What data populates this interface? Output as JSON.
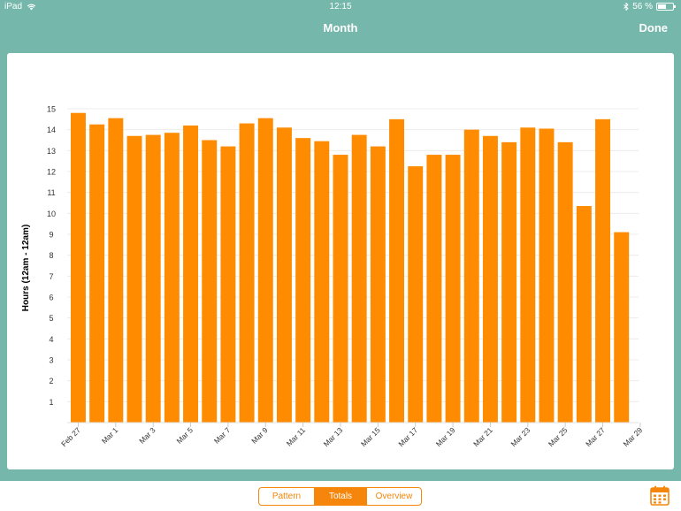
{
  "status_bar": {
    "device": "iPad",
    "time": "12:15",
    "battery_text": "56 %",
    "battery_level": 0.56
  },
  "nav": {
    "title": "Month",
    "done_label": "Done"
  },
  "chart_data": {
    "type": "bar",
    "title": "",
    "xlabel": "",
    "ylabel": "Hours (12am - 12am)",
    "ylim": [
      0,
      15
    ],
    "yticks": [
      1,
      2,
      3,
      4,
      5,
      6,
      7,
      8,
      9,
      10,
      11,
      12,
      13,
      14,
      15
    ],
    "categories": [
      "Feb 27",
      "Feb 28",
      "Mar 1",
      "Mar 2",
      "Mar 3",
      "Mar 4",
      "Mar 5",
      "Mar 6",
      "Mar 7",
      "Mar 8",
      "Mar 9",
      "Mar 10",
      "Mar 11",
      "Mar 12",
      "Mar 13",
      "Mar 14",
      "Mar 15",
      "Mar 16",
      "Mar 17",
      "Mar 18",
      "Mar 19",
      "Mar 20",
      "Mar 21",
      "Mar 22",
      "Mar 23",
      "Mar 24",
      "Mar 25",
      "Mar 26",
      "Mar 27",
      "Mar 28"
    ],
    "tick_labels": [
      "Feb 27",
      "Mar 1",
      "Mar 3",
      "Mar 5",
      "Mar 7",
      "Mar 9",
      "Mar 11",
      "Mar 13",
      "Mar 15",
      "Mar 17",
      "Mar 19",
      "Mar 21",
      "Mar 23",
      "Mar 25",
      "Mar 27",
      "Mar 29"
    ],
    "values": [
      14.8,
      14.25,
      14.55,
      13.7,
      13.75,
      13.85,
      14.2,
      13.5,
      13.2,
      14.3,
      14.55,
      14.1,
      13.6,
      13.45,
      12.8,
      13.75,
      13.2,
      14.5,
      12.25,
      12.8,
      12.8,
      14.0,
      13.7,
      13.4,
      14.1,
      14.05,
      13.4,
      10.35,
      14.5,
      9.1
    ],
    "bar_color": "#ff8b00",
    "grid": true
  },
  "tabs": [
    {
      "label": "Pattern",
      "active": false
    },
    {
      "label": "Totals",
      "active": true
    },
    {
      "label": "Overview",
      "active": false
    }
  ],
  "colors": {
    "header_bg": "#75b8ab",
    "accent": "#f5860b",
    "bar": "#ff8b00"
  },
  "icons": {
    "calendar": "calendar-icon",
    "wifi": "wifi-icon",
    "bluetooth": "bluetooth-icon",
    "battery": "battery-icon"
  }
}
